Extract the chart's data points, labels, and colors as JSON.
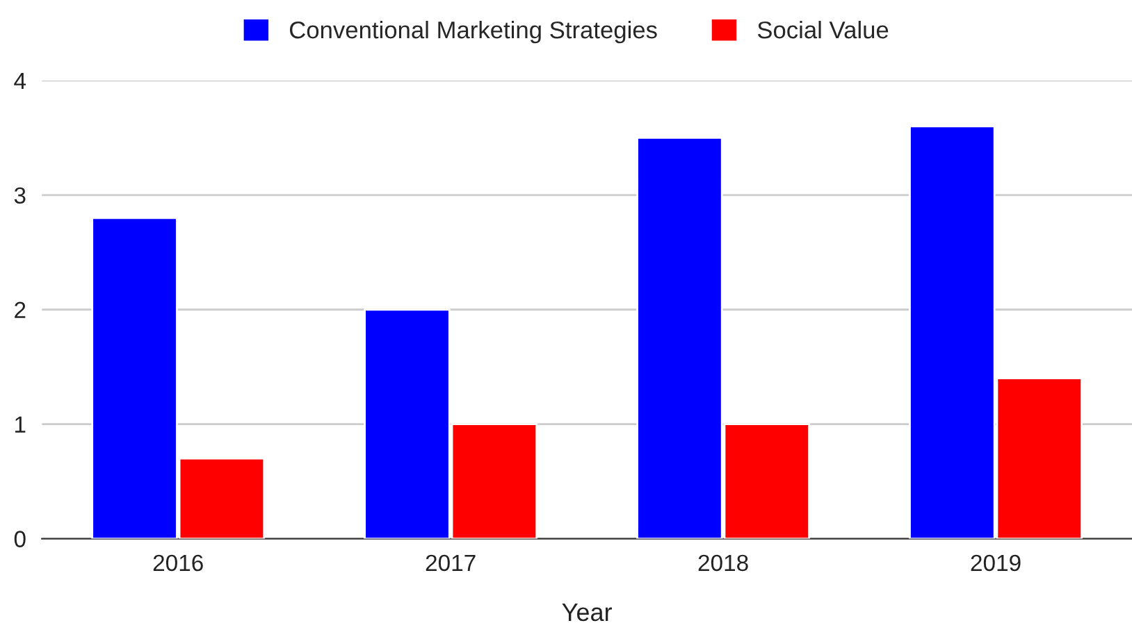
{
  "chart_data": {
    "type": "bar",
    "xlabel": "Year",
    "categories": [
      "2016",
      "2017",
      "2018",
      "2019"
    ],
    "series": [
      {
        "name": "Conventional Marketing Strategies",
        "color": "#0000ff",
        "values": [
          2.8,
          2.0,
          3.5,
          3.6
        ]
      },
      {
        "name": "Social Value",
        "color": "#ff0000",
        "values": [
          0.7,
          1.0,
          1.0,
          1.4
        ]
      }
    ],
    "ylim": [
      0,
      4
    ],
    "yticks": [
      0,
      1,
      2,
      3,
      4
    ],
    "grid": "y",
    "legend": "top"
  }
}
